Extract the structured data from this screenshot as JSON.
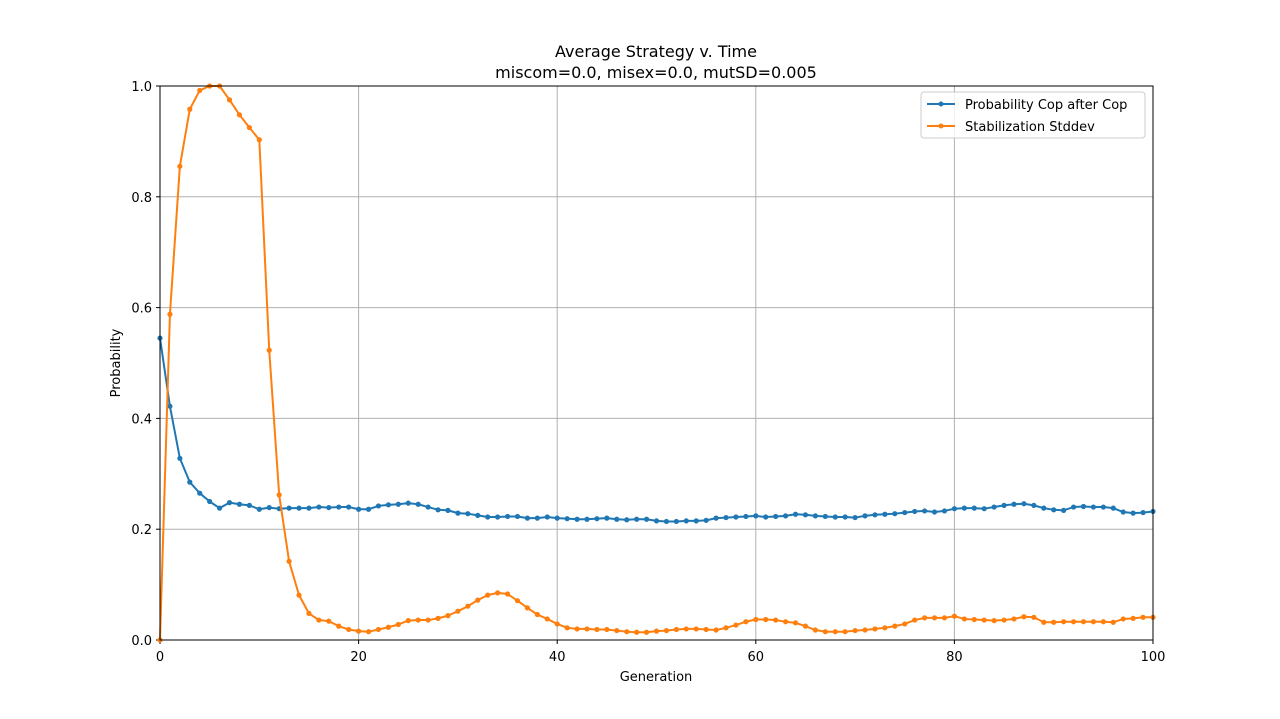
{
  "chart_data": {
    "type": "line",
    "title": "Average Strategy v. Time",
    "subtitle": "miscom=0.0, misex=0.0, mutSD=0.005",
    "xlabel": "Generation",
    "ylabel": "Probability",
    "xlim": [
      0,
      100
    ],
    "ylim": [
      0,
      1.0
    ],
    "xticks": [
      0,
      20,
      40,
      60,
      80,
      100
    ],
    "yticks": [
      0.0,
      0.2,
      0.4,
      0.6,
      0.8,
      1.0
    ],
    "xtick_labels": [
      "0",
      "20",
      "40",
      "60",
      "80",
      "100"
    ],
    "ytick_labels": [
      "0.0",
      "0.2",
      "0.4",
      "0.6",
      "0.8",
      "1.0"
    ],
    "grid": true,
    "legend_position": "top-right",
    "x": [
      0,
      1,
      2,
      3,
      4,
      5,
      6,
      7,
      8,
      9,
      10,
      11,
      12,
      13,
      14,
      15,
      16,
      17,
      18,
      19,
      20,
      21,
      22,
      23,
      24,
      25,
      26,
      27,
      28,
      29,
      30,
      31,
      32,
      33,
      34,
      35,
      36,
      37,
      38,
      39,
      40,
      41,
      42,
      43,
      44,
      45,
      46,
      47,
      48,
      49,
      50,
      51,
      52,
      53,
      54,
      55,
      56,
      57,
      58,
      59,
      60,
      61,
      62,
      63,
      64,
      65,
      66,
      67,
      68,
      69,
      70,
      71,
      72,
      73,
      74,
      75,
      76,
      77,
      78,
      79,
      80,
      81,
      82,
      83,
      84,
      85,
      86,
      87,
      88,
      89,
      90,
      91,
      92,
      93,
      94,
      95,
      96,
      97,
      98,
      99,
      100
    ],
    "series": [
      {
        "name": "Probability Cop after Cop",
        "color": "#1f77b4",
        "values": [
          0.545,
          0.422,
          0.328,
          0.285,
          0.265,
          0.25,
          0.238,
          0.248,
          0.245,
          0.243,
          0.236,
          0.239,
          0.237,
          0.238,
          0.238,
          0.238,
          0.24,
          0.239,
          0.24,
          0.24,
          0.236,
          0.236,
          0.242,
          0.244,
          0.245,
          0.247,
          0.245,
          0.24,
          0.235,
          0.234,
          0.229,
          0.228,
          0.225,
          0.222,
          0.222,
          0.223,
          0.223,
          0.22,
          0.22,
          0.222,
          0.22,
          0.219,
          0.218,
          0.218,
          0.219,
          0.22,
          0.218,
          0.217,
          0.218,
          0.218,
          0.215,
          0.214,
          0.214,
          0.215,
          0.215,
          0.216,
          0.22,
          0.221,
          0.222,
          0.223,
          0.224,
          0.222,
          0.223,
          0.224,
          0.227,
          0.226,
          0.224,
          0.223,
          0.222,
          0.222,
          0.221,
          0.224,
          0.226,
          0.227,
          0.228,
          0.23,
          0.232,
          0.233,
          0.231,
          0.233,
          0.237,
          0.238,
          0.238,
          0.237,
          0.24,
          0.243,
          0.245,
          0.246,
          0.243,
          0.238,
          0.235,
          0.234,
          0.24,
          0.241,
          0.24,
          0.24,
          0.238,
          0.231,
          0.229,
          0.23,
          0.232
        ]
      },
      {
        "name": "Stabilization Stddev",
        "color": "#ff7f0e",
        "values": [
          0.0,
          0.588,
          0.855,
          0.958,
          0.992,
          1.0,
          1.0,
          0.975,
          0.948,
          0.925,
          0.903,
          0.523,
          0.262,
          0.142,
          0.081,
          0.048,
          0.036,
          0.034,
          0.025,
          0.019,
          0.016,
          0.015,
          0.019,
          0.023,
          0.028,
          0.035,
          0.036,
          0.036,
          0.039,
          0.044,
          0.052,
          0.061,
          0.072,
          0.081,
          0.085,
          0.083,
          0.071,
          0.058,
          0.046,
          0.038,
          0.029,
          0.022,
          0.02,
          0.02,
          0.019,
          0.019,
          0.017,
          0.015,
          0.014,
          0.014,
          0.016,
          0.017,
          0.019,
          0.02,
          0.02,
          0.019,
          0.018,
          0.022,
          0.027,
          0.033,
          0.037,
          0.037,
          0.036,
          0.033,
          0.031,
          0.025,
          0.018,
          0.015,
          0.015,
          0.015,
          0.017,
          0.018,
          0.02,
          0.022,
          0.025,
          0.029,
          0.036,
          0.04,
          0.04,
          0.04,
          0.043,
          0.038,
          0.037,
          0.036,
          0.035,
          0.036,
          0.038,
          0.042,
          0.041,
          0.032,
          0.032,
          0.033,
          0.033,
          0.033,
          0.033,
          0.033,
          0.032,
          0.038,
          0.039,
          0.041,
          0.041
        ]
      }
    ]
  }
}
